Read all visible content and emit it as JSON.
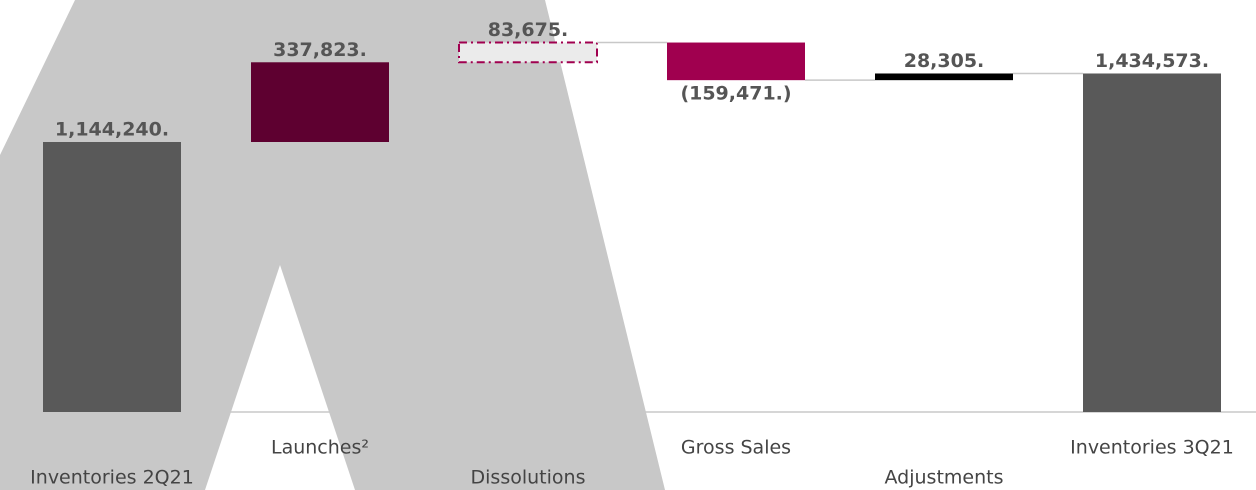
{
  "chart_data": {
    "type": "waterfall",
    "categories": [
      "Inventories 2Q21",
      "Launches²",
      "Dissolutions",
      "Gross Sales",
      "Adjustments",
      "Inventories 3Q21"
    ],
    "values": [
      1144240,
      337823,
      83675,
      -159471,
      28305,
      1434573
    ],
    "value_labels": [
      "1,144,240.",
      "337,823.",
      "83,675.",
      "(159,471.)",
      "28,305.",
      "1,434,573."
    ],
    "measure": [
      "total",
      "relative",
      "relative",
      "relative",
      "relative",
      "total"
    ],
    "colors": [
      "#595959",
      "#5e0030",
      "#a0004f",
      "#a0004f",
      "#000000",
      "#595959"
    ],
    "dashed_outline": [
      false,
      false,
      true,
      false,
      false,
      false
    ],
    "ylim": [
      0,
      1746000
    ]
  }
}
